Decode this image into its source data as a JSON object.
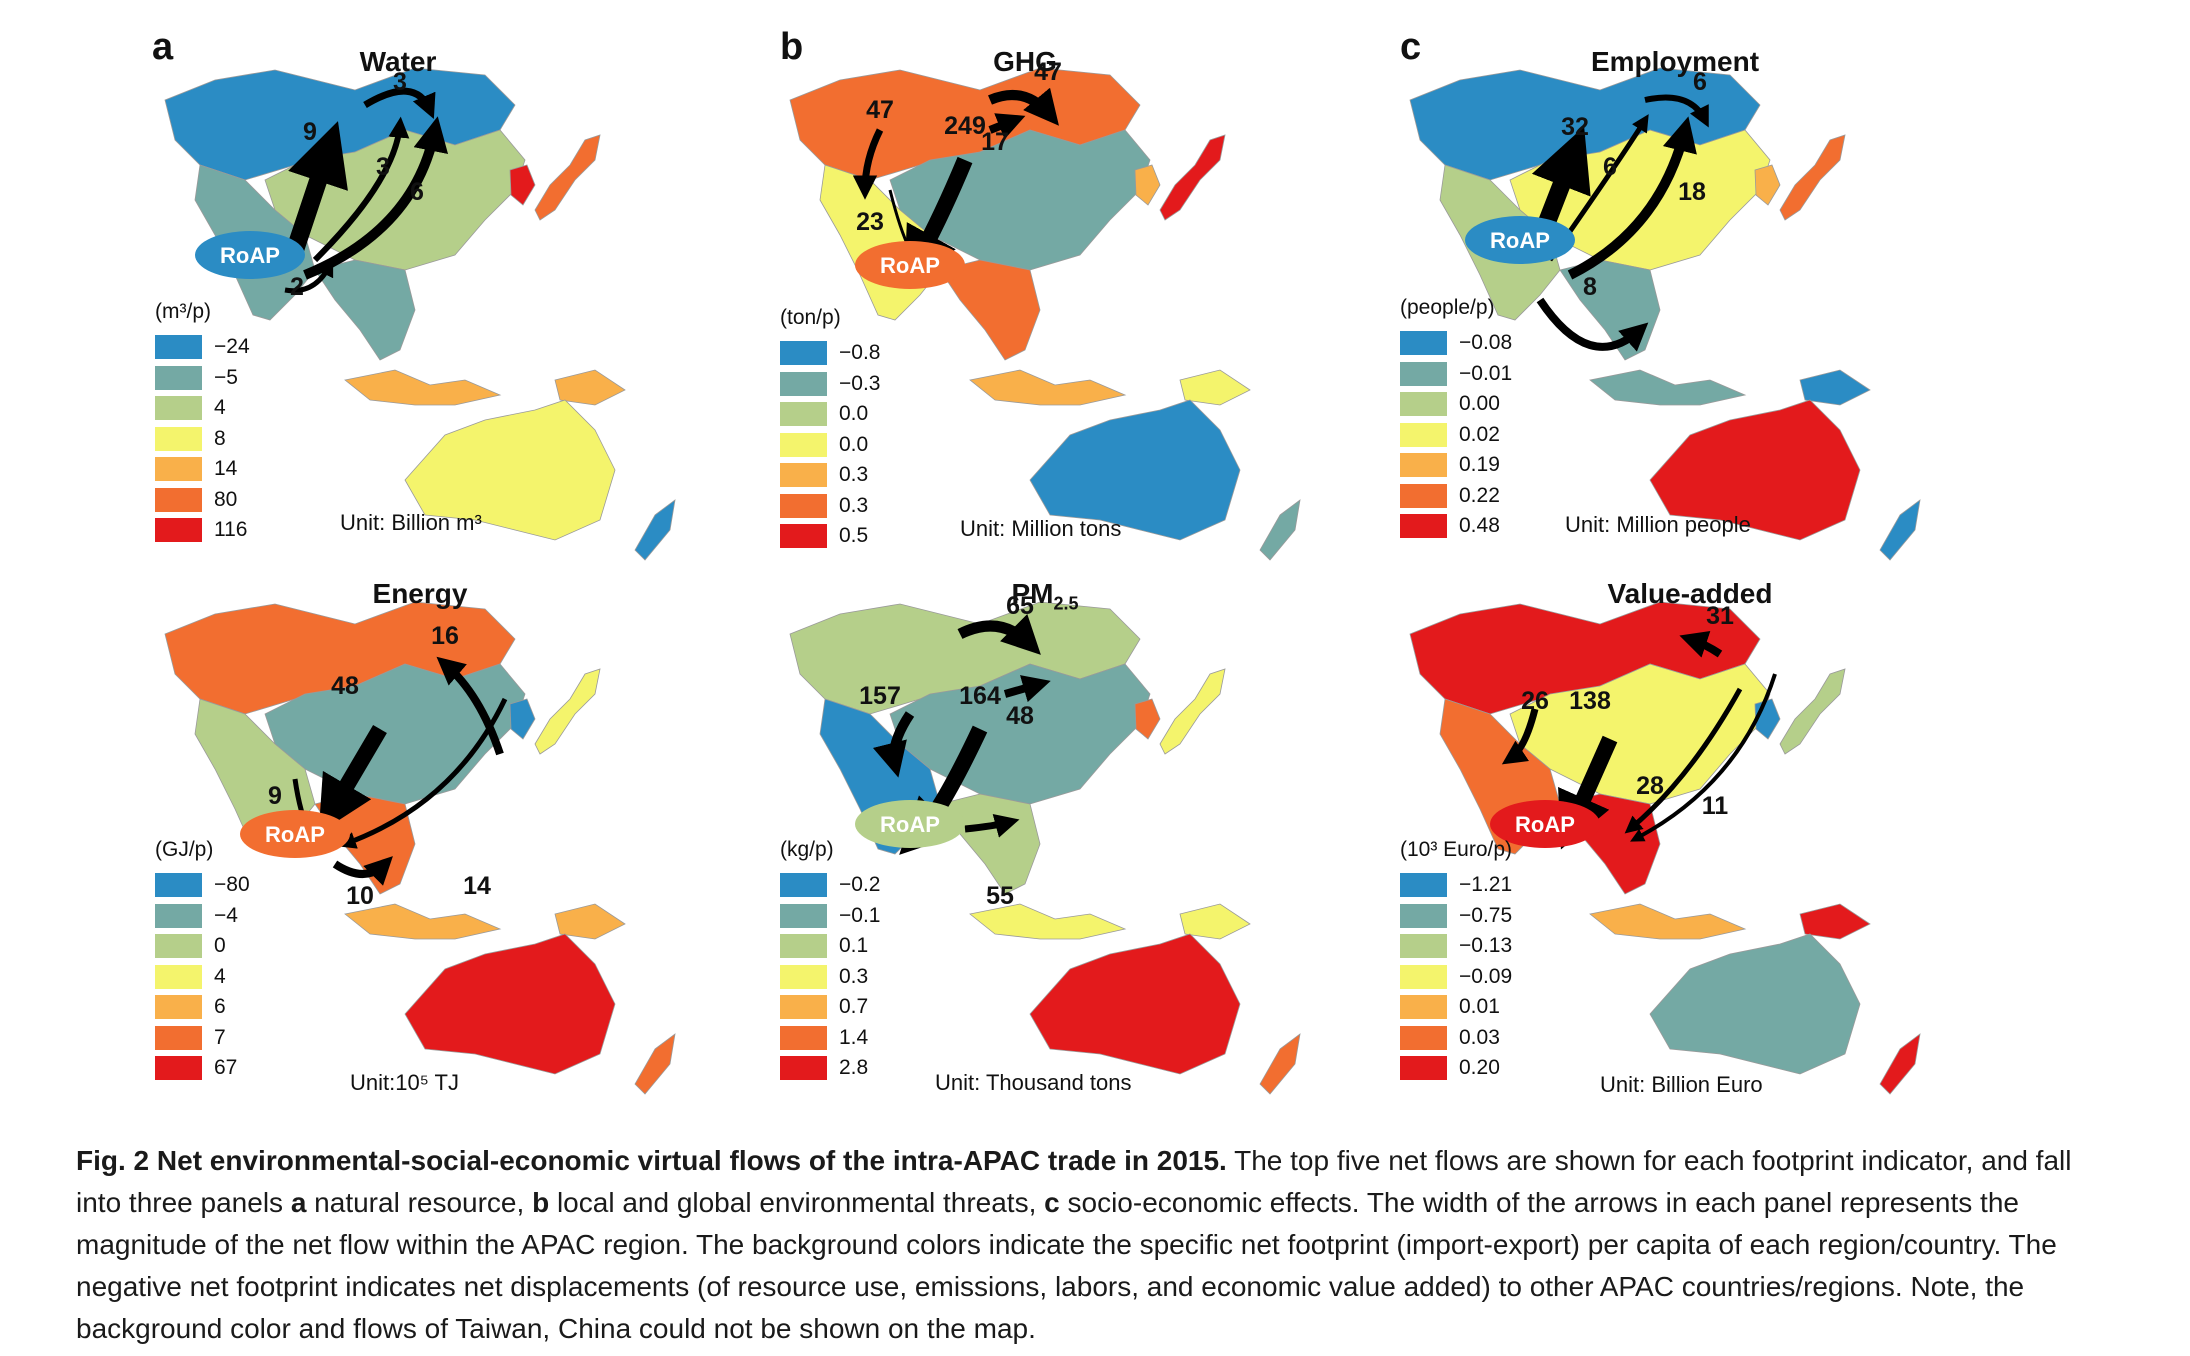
{
  "colors": {
    "ramp": [
      "#2b8cc4",
      "#74a9a4",
      "#b5cf8a",
      "#f4f46c",
      "#f9b04a",
      "#f26e30",
      "#e31a1c"
    ],
    "flow": "#000000",
    "roap_label": "#ffffff"
  },
  "panels": [
    {
      "id": "water",
      "letter": "a",
      "title": "Water",
      "legend_title": "(m³/p)",
      "legend": [
        "−24",
        "−5",
        "4",
        "8",
        "14",
        "80",
        "116"
      ],
      "unit": "Unit: Billion m³",
      "roap": {
        "label": "RoAP",
        "color": "#2b8cc4"
      },
      "regions": {
        "russia": 0,
        "china": 2,
        "india": 1,
        "japan": 5,
        "korea": 6,
        "sea": 1,
        "indonesia": 4,
        "australia": 3,
        "nz": 0,
        "png": 4
      },
      "flows": [
        "9",
        "3",
        "3",
        "6",
        "2"
      ]
    },
    {
      "id": "ghg",
      "letter": "b",
      "title": "GHG",
      "legend_title": "(ton/p)",
      "legend": [
        "−0.8",
        "−0.3",
        "0.0",
        "0.0",
        "0.3",
        "0.3",
        "0.5"
      ],
      "unit": "Unit: Million tons",
      "roap": {
        "label": "RoAP",
        "color": "#f26e30"
      },
      "regions": {
        "russia": 5,
        "china": 1,
        "india": 3,
        "japan": 6,
        "korea": 4,
        "sea": 5,
        "indonesia": 4,
        "australia": 0,
        "nz": 1,
        "png": 3
      },
      "flows": [
        "47",
        "47",
        "249",
        "17",
        "23"
      ]
    },
    {
      "id": "employment",
      "letter": "c",
      "title": "Employment",
      "legend_title": "(people/p)",
      "legend": [
        "−0.08",
        "−0.01",
        "0.00",
        "0.02",
        "0.19",
        "0.22",
        "0.48"
      ],
      "unit": "Unit: Million people",
      "roap": {
        "label": "RoAP",
        "color": "#2b8cc4"
      },
      "regions": {
        "russia": 0,
        "china": 3,
        "india": 2,
        "japan": 5,
        "korea": 4,
        "sea": 1,
        "indonesia": 1,
        "australia": 6,
        "nz": 0,
        "png": 0
      },
      "flows": [
        "6",
        "32",
        "6",
        "18",
        "8"
      ]
    },
    {
      "id": "energy",
      "letter": "",
      "title": "Energy",
      "legend_title": "(GJ/p)",
      "legend": [
        "−80",
        "−4",
        "0",
        "4",
        "6",
        "7",
        "67"
      ],
      "unit": "Unit:10⁵ TJ",
      "roap": {
        "label": "RoAP",
        "color": "#f26e30"
      },
      "regions": {
        "russia": 5,
        "china": 1,
        "india": 2,
        "japan": 3,
        "korea": 0,
        "sea": 5,
        "indonesia": 4,
        "australia": 6,
        "nz": 5,
        "png": 4
      },
      "flows": [
        "16",
        "48",
        "14",
        "9",
        "10"
      ]
    },
    {
      "id": "pm25",
      "letter": "",
      "title": "PM",
      "title_sub": "2.5",
      "legend_title": "(kg/p)",
      "legend": [
        "−0.2",
        "−0.1",
        "0.1",
        "0.3",
        "0.7",
        "1.4",
        "2.8"
      ],
      "unit": "Unit: Thousand tons",
      "roap": {
        "label": "RoAP",
        "color": "#b5cf8a"
      },
      "regions": {
        "russia": 2,
        "china": 1,
        "india": 0,
        "japan": 3,
        "korea": 5,
        "sea": 2,
        "indonesia": 3,
        "australia": 6,
        "nz": 5,
        "png": 3
      },
      "flows": [
        "65",
        "157",
        "164",
        "48",
        "55"
      ]
    },
    {
      "id": "value_added",
      "letter": "",
      "title": "Value-added",
      "legend_title": "(10³ Euro/p)",
      "legend": [
        "−1.21",
        "−0.75",
        "−0.13",
        "−0.09",
        "0.01",
        "0.03",
        "0.20"
      ],
      "unit": "Unit: Billion Euro",
      "roap": {
        "label": "RoAP",
        "color": "#e31a1c"
      },
      "regions": {
        "russia": 6,
        "china": 3,
        "india": 5,
        "japan": 2,
        "korea": 0,
        "sea": 6,
        "indonesia": 4,
        "australia": 1,
        "nz": 6,
        "png": 6
      },
      "flows": [
        "31",
        "26",
        "138",
        "28",
        "11"
      ]
    }
  ],
  "caption": {
    "title": "Fig. 2 Net environmental-social-economic virtual flows of the intra-APAC trade in 2015.",
    "part1": " The top five net flows are shown for each footprint indicator, and fall into three panels ",
    "a": "a",
    "part2": " natural resource, ",
    "b": "b",
    "part3": " local and global environmental threats, ",
    "c": "c",
    "part4": " socio-economic effects. The width of the arrows in each panel represents the magnitude of the net flow within the APAC region. The background colors indicate the specific net footprint (import-export) per capita of each region/country. The negative net footprint indicates net displacements (of resource use, emissions, labors, and economic value added) to other APAC countries/regions. Note, the background color and flows of Taiwan, China could not be shown on the map."
  }
}
